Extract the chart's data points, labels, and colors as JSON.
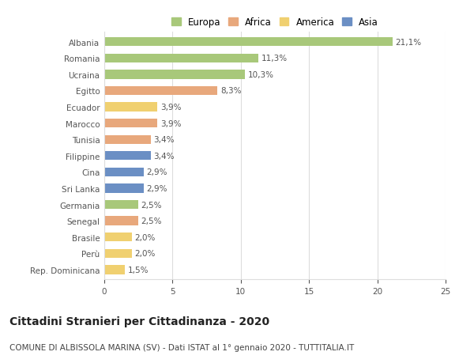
{
  "countries": [
    "Albania",
    "Romania",
    "Ucraina",
    "Egitto",
    "Ecuador",
    "Marocco",
    "Tunisia",
    "Filippine",
    "Cina",
    "Sri Lanka",
    "Germania",
    "Senegal",
    "Brasile",
    "Perù",
    "Rep. Dominicana"
  ],
  "values": [
    21.1,
    11.3,
    10.3,
    8.3,
    3.9,
    3.9,
    3.4,
    3.4,
    2.9,
    2.9,
    2.5,
    2.5,
    2.0,
    2.0,
    1.5
  ],
  "labels": [
    "21,1%",
    "11,3%",
    "10,3%",
    "8,3%",
    "3,9%",
    "3,9%",
    "3,4%",
    "3,4%",
    "2,9%",
    "2,9%",
    "2,5%",
    "2,5%",
    "2,0%",
    "2,0%",
    "1,5%"
  ],
  "colors": [
    "#a8c87a",
    "#a8c87a",
    "#a8c87a",
    "#e8a87c",
    "#f0d070",
    "#e8a87c",
    "#e8a87c",
    "#6b8fc4",
    "#6b8fc4",
    "#6b8fc4",
    "#a8c87a",
    "#e8a87c",
    "#f0d070",
    "#f0d070",
    "#f0d070"
  ],
  "legend_labels": [
    "Europa",
    "Africa",
    "America",
    "Asia"
  ],
  "legend_colors": [
    "#a8c87a",
    "#e8a87c",
    "#f0d070",
    "#6b8fc4"
  ],
  "title": "Cittadini Stranieri per Cittadinanza - 2020",
  "subtitle": "COMUNE DI ALBISSOLA MARINA (SV) - Dati ISTAT al 1° gennaio 2020 - TUTTITALIA.IT",
  "xlim": [
    0,
    25
  ],
  "xticks": [
    0,
    5,
    10,
    15,
    20,
    25
  ],
  "background_color": "#ffffff",
  "grid_color": "#dddddd",
  "bar_height": 0.55,
  "title_fontsize": 10,
  "subtitle_fontsize": 7.5,
  "label_fontsize": 7.5,
  "tick_fontsize": 7.5,
  "legend_fontsize": 8.5
}
